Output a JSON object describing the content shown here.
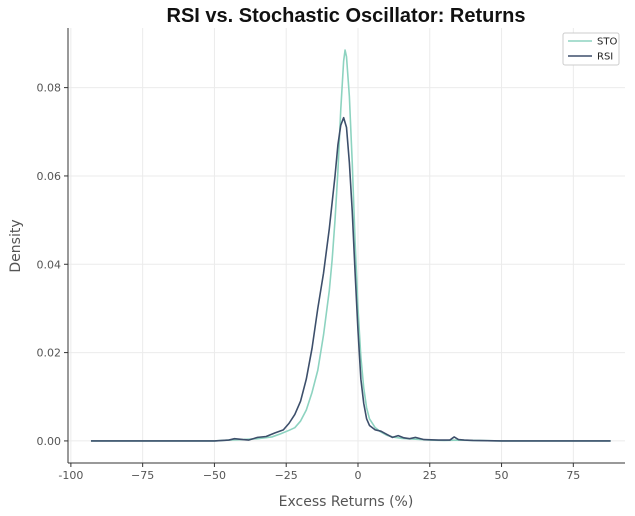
{
  "chart_data": {
    "type": "line",
    "title": "RSI vs. Stochastic Oscillator: Returns",
    "xlabel": "Excess Returns (%)",
    "ylabel": "Density",
    "xlim": [
      -101,
      93
    ],
    "ylim": [
      -0.005,
      0.0935
    ],
    "xticks": [
      -100,
      -75,
      -50,
      -25,
      0,
      25,
      50,
      75
    ],
    "xtick_labels": [
      "-100",
      "−75",
      "−50",
      "−25",
      "0",
      "25",
      "50",
      "75"
    ],
    "yticks": [
      0.0,
      0.02,
      0.04,
      0.06,
      0.08
    ],
    "ytick_labels": [
      "0.00",
      "0.02",
      "0.04",
      "0.06",
      "0.08"
    ],
    "grid": true,
    "legend_position": "top-right",
    "series": [
      {
        "name": "STO",
        "color": "#8dd3c0",
        "points": [
          [
            -93,
            0
          ],
          [
            -60,
            0
          ],
          [
            -50,
            0
          ],
          [
            -45,
            0.0002
          ],
          [
            -40,
            0.0003
          ],
          [
            -35,
            0.0005
          ],
          [
            -30,
            0.0009
          ],
          [
            -27,
            0.0016
          ],
          [
            -24,
            0.0024
          ],
          [
            -22,
            0.003
          ],
          [
            -20,
            0.0045
          ],
          [
            -18,
            0.007
          ],
          [
            -16,
            0.011
          ],
          [
            -14,
            0.016
          ],
          [
            -12,
            0.024
          ],
          [
            -10,
            0.034
          ],
          [
            -9,
            0.041
          ],
          [
            -8,
            0.05
          ],
          [
            -7,
            0.061
          ],
          [
            -6,
            0.075
          ],
          [
            -5,
            0.086
          ],
          [
            -4.5,
            0.0885
          ],
          [
            -4,
            0.087
          ],
          [
            -3,
            0.078
          ],
          [
            -2,
            0.063
          ],
          [
            -1,
            0.045
          ],
          [
            0,
            0.03
          ],
          [
            1,
            0.019
          ],
          [
            2,
            0.012
          ],
          [
            3,
            0.0075
          ],
          [
            4,
            0.005
          ],
          [
            6,
            0.003
          ],
          [
            8,
            0.002
          ],
          [
            10,
            0.0013
          ],
          [
            12,
            0.0009
          ],
          [
            15,
            0.0006
          ],
          [
            20,
            0.0004
          ],
          [
            25,
            0.0002
          ],
          [
            30,
            0.0001
          ],
          [
            35,
            0.0002
          ],
          [
            40,
            0.0001
          ],
          [
            50,
            0
          ],
          [
            88,
            0
          ]
        ]
      },
      {
        "name": "RSI",
        "color": "#3d4f6b",
        "points": [
          [
            -93,
            0
          ],
          [
            -60,
            0
          ],
          [
            -50,
            0
          ],
          [
            -45,
            0.0002
          ],
          [
            -43,
            0.0005
          ],
          [
            -40,
            0.0003
          ],
          [
            -38,
            0.0002
          ],
          [
            -35,
            0.0008
          ],
          [
            -32,
            0.001
          ],
          [
            -29,
            0.0018
          ],
          [
            -26,
            0.0025
          ],
          [
            -24,
            0.004
          ],
          [
            -22,
            0.006
          ],
          [
            -20,
            0.009
          ],
          [
            -18,
            0.014
          ],
          [
            -16,
            0.021
          ],
          [
            -14,
            0.03
          ],
          [
            -12,
            0.038
          ],
          [
            -10,
            0.048
          ],
          [
            -9,
            0.054
          ],
          [
            -8,
            0.06
          ],
          [
            -7,
            0.067
          ],
          [
            -6,
            0.0715
          ],
          [
            -5,
            0.0732
          ],
          [
            -4,
            0.071
          ],
          [
            -3,
            0.063
          ],
          [
            -2,
            0.052
          ],
          [
            -1,
            0.038
          ],
          [
            0,
            0.025
          ],
          [
            1,
            0.014
          ],
          [
            2,
            0.0085
          ],
          [
            3,
            0.005
          ],
          [
            4,
            0.0035
          ],
          [
            6,
            0.0025
          ],
          [
            8,
            0.0022
          ],
          [
            10,
            0.0015
          ],
          [
            12,
            0.0008
          ],
          [
            14,
            0.0012
          ],
          [
            16,
            0.0007
          ],
          [
            18,
            0.0005
          ],
          [
            20,
            0.0008
          ],
          [
            23,
            0.0003
          ],
          [
            28,
            0.0002
          ],
          [
            32,
            0.0002
          ],
          [
            33.5,
            0.0009
          ],
          [
            35,
            0.0003
          ],
          [
            37,
            0.0002
          ],
          [
            40,
            0.0001
          ],
          [
            50,
            0
          ],
          [
            88,
            0
          ]
        ]
      }
    ]
  }
}
